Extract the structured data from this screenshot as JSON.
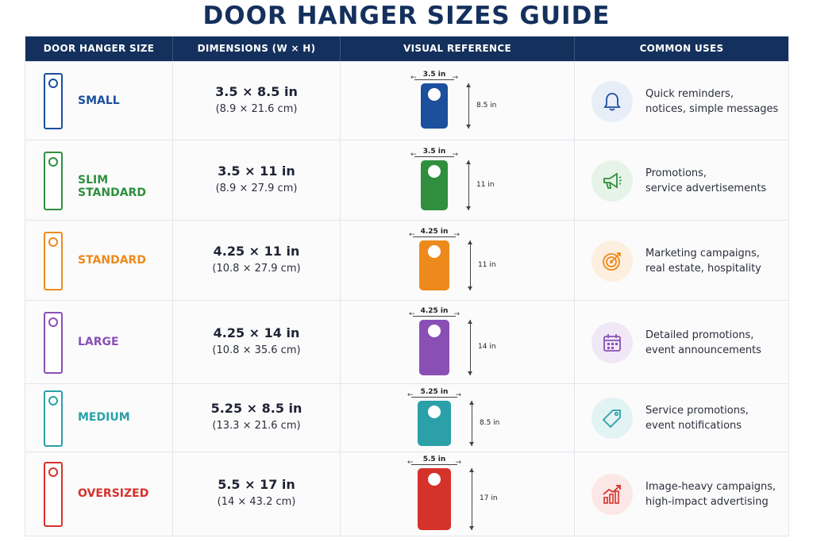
{
  "title": "DOOR HANGER SIZES GUIDE",
  "headers": [
    "DOOR HANGER SIZE",
    "DIMENSIONS (W × H)",
    "VISUAL REFERENCE",
    "COMMON USES"
  ],
  "rows": [
    {
      "name": "SMALL",
      "dim": "3.5 × 8.5 in",
      "dim_cm": "(8.9 × 21.6 cm)",
      "w_label": "3.5 in",
      "h_label": "8.5 in",
      "uses_1": "Quick reminders,",
      "uses_2": "notices, simple messages",
      "color": "#1c4f9c",
      "icon": "bell-icon",
      "icon_bg": "#e7eef8",
      "height_fraction": 0.5
    },
    {
      "name": "SLIM STANDARD",
      "dim": "3.5 × 11 in",
      "dim_cm": "(8.9 × 27.9 cm)",
      "w_label": "3.5 in",
      "h_label": "11 in",
      "uses_1": "Promotions,",
      "uses_2": "service advertisements",
      "color": "#2f8f3e",
      "icon": "megaphone-icon",
      "icon_bg": "#e6f3e8",
      "height_fraction": 0.65
    },
    {
      "name": "STANDARD",
      "dim": "4.25 × 11 in",
      "dim_cm": "(10.8 × 27.9 cm)",
      "w_label": "4.25 in",
      "h_label": "11 in",
      "uses_1": "Marketing campaigns,",
      "uses_2": "real estate, hospitality",
      "color": "#ee8a1c",
      "icon": "target-icon",
      "icon_bg": "#fdefdf",
      "height_fraction": 0.65
    },
    {
      "name": "LARGE",
      "dim": "4.25 × 14 in",
      "dim_cm": "(10.8 × 35.6 cm)",
      "w_label": "4.25 in",
      "h_label": "14 in",
      "uses_1": "Detailed promotions,",
      "uses_2": "event announcements",
      "color": "#8a4fb5",
      "icon": "calendar-icon",
      "icon_bg": "#f0e8f6",
      "height_fraction": 0.82
    },
    {
      "name": "MEDIUM",
      "dim": "5.25 × 8.5 in",
      "dim_cm": "(13.3 × 21.6 cm)",
      "w_label": "5.25 in",
      "h_label": "8.5 in",
      "uses_1": "Service promotions,",
      "uses_2": "event notifications",
      "color": "#2ba0a8",
      "icon": "tag-icon",
      "icon_bg": "#e2f3f4",
      "height_fraction": 0.5
    },
    {
      "name": "OVERSIZED",
      "dim": "5.5 × 17 in",
      "dim_cm": "(14 × 43.2 cm)",
      "w_label": "5.5 in",
      "h_label": "17 in",
      "uses_1": "Image-heavy campaigns,",
      "uses_2": "high-impact advertising",
      "color": "#d4322b",
      "icon": "growth-chart-icon",
      "icon_bg": "#fbe7e6",
      "height_fraction": 1.0
    }
  ]
}
